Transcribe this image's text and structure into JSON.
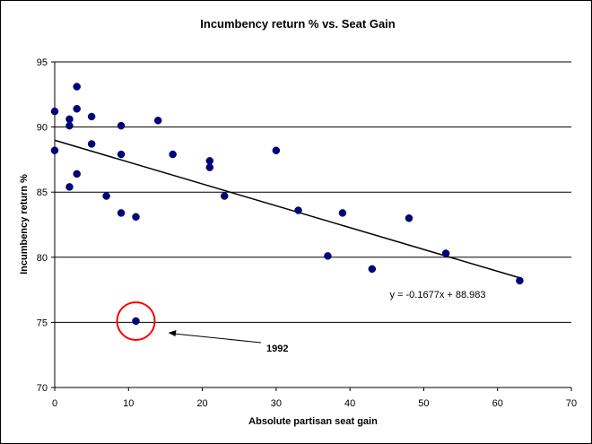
{
  "chart_data": {
    "type": "scatter",
    "title": "Incumbency return % vs. Seat Gain",
    "xlabel": "Absolute partisan seat gain",
    "ylabel": "Incumbency return %",
    "xlim": [
      0,
      70
    ],
    "ylim": [
      70,
      95
    ],
    "xticks": [
      0,
      10,
      20,
      30,
      40,
      50,
      60,
      70
    ],
    "yticks": [
      70,
      75,
      80,
      85,
      90,
      95
    ],
    "grid": "horizontal",
    "marker_color": "#000080",
    "series": [
      {
        "points": [
          {
            "x": 0,
            "y": 91.2
          },
          {
            "x": 0,
            "y": 88.2
          },
          {
            "x": 2,
            "y": 90.6
          },
          {
            "x": 2,
            "y": 90.1
          },
          {
            "x": 2,
            "y": 85.4
          },
          {
            "x": 3,
            "y": 93.1
          },
          {
            "x": 3,
            "y": 91.4
          },
          {
            "x": 3,
            "y": 86.4
          },
          {
            "x": 5,
            "y": 90.8
          },
          {
            "x": 5,
            "y": 88.7
          },
          {
            "x": 7,
            "y": 84.7
          },
          {
            "x": 9,
            "y": 90.1
          },
          {
            "x": 9,
            "y": 87.9
          },
          {
            "x": 9,
            "y": 83.4
          },
          {
            "x": 11,
            "y": 83.1
          },
          {
            "x": 11,
            "y": 75.1
          },
          {
            "x": 14,
            "y": 90.5
          },
          {
            "x": 16,
            "y": 87.9
          },
          {
            "x": 21,
            "y": 87.4
          },
          {
            "x": 21,
            "y": 86.9
          },
          {
            "x": 23,
            "y": 84.7
          },
          {
            "x": 30,
            "y": 88.2
          },
          {
            "x": 33,
            "y": 83.6
          },
          {
            "x": 37,
            "y": 80.1
          },
          {
            "x": 39,
            "y": 83.4
          },
          {
            "x": 43,
            "y": 79.1
          },
          {
            "x": 48,
            "y": 83.0
          },
          {
            "x": 53,
            "y": 80.3
          },
          {
            "x": 63,
            "y": 78.2
          }
        ]
      }
    ],
    "trendline": {
      "slope": -0.1677,
      "intercept": 88.983,
      "x_range": [
        0,
        63
      ],
      "equation_label": "y = -0.1677x + 88.983"
    },
    "highlight": {
      "x": 11,
      "y": 75.1,
      "circle_color": "#ff0000",
      "label": "1992"
    }
  }
}
